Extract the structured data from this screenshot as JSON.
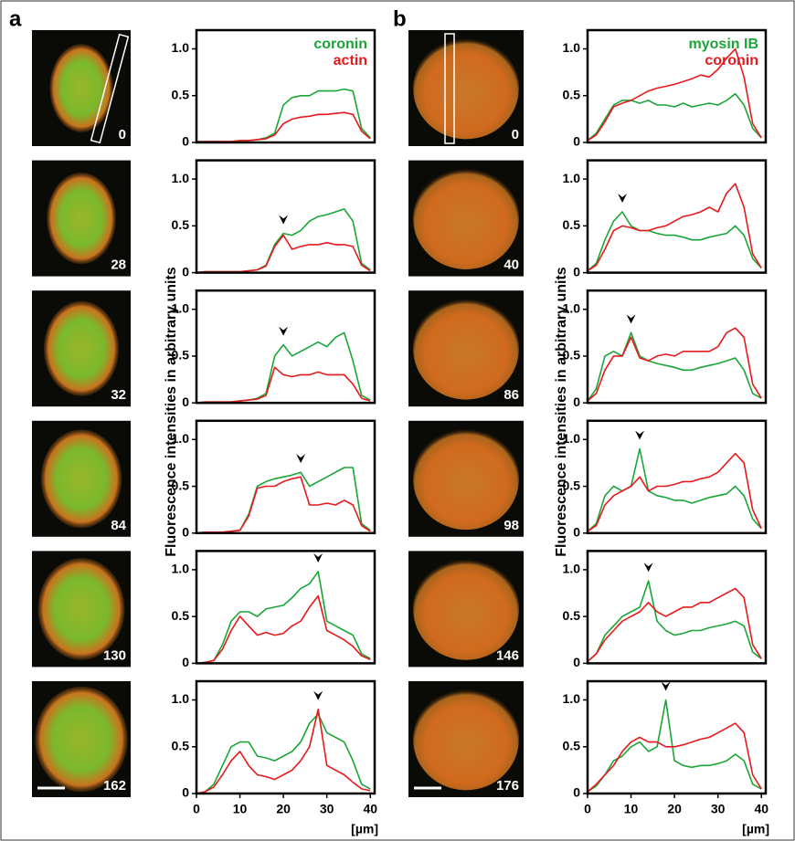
{
  "panel_labels": [
    "a",
    "b"
  ],
  "y_label": "Fluorescence intensities in arbitrary units",
  "chart_data": [
    {
      "type": "line",
      "image_label": "0",
      "legend": true,
      "xlim": [
        0,
        41
      ],
      "ylim": [
        0,
        1.2
      ],
      "yticks": [
        0,
        0.5,
        {
          "value": 1,
          "label": "1.0"
        }
      ],
      "x": [
        0,
        2,
        4,
        6,
        8,
        10,
        12,
        14,
        16,
        18,
        20,
        22,
        24,
        26,
        28,
        30,
        32,
        34,
        36,
        38,
        40
      ],
      "series": [
        {
          "name": "coronin",
          "color": "#1aa637",
          "values": [
            0.01,
            0.01,
            0.01,
            0.01,
            0.01,
            0.02,
            0.02,
            0.03,
            0.05,
            0.1,
            0.4,
            0.48,
            0.5,
            0.5,
            0.55,
            0.55,
            0.55,
            0.57,
            0.55,
            0.15,
            0.05
          ]
        },
        {
          "name": "actin",
          "color": "#e8191c",
          "values": [
            0.01,
            0.01,
            0.01,
            0.01,
            0.01,
            0.02,
            0.02,
            0.03,
            0.04,
            0.08,
            0.2,
            0.25,
            0.27,
            0.28,
            0.3,
            0.3,
            0.31,
            0.32,
            0.3,
            0.12,
            0.04
          ]
        }
      ]
    },
    {
      "type": "line",
      "image_label": "28",
      "marker_x": 20,
      "xlim": [
        0,
        41
      ],
      "ylim": [
        0,
        1.2
      ],
      "yticks": [
        0,
        0.5,
        {
          "value": 1,
          "label": "1.0"
        }
      ],
      "x": [
        0,
        2,
        4,
        6,
        8,
        10,
        12,
        14,
        16,
        18,
        20,
        22,
        24,
        26,
        28,
        30,
        32,
        34,
        36,
        38,
        40
      ],
      "series": [
        {
          "color": "#1aa637",
          "values": [
            0,
            0.01,
            0.01,
            0.01,
            0.01,
            0.01,
            0.02,
            0.03,
            0.08,
            0.3,
            0.42,
            0.4,
            0.45,
            0.55,
            0.6,
            0.62,
            0.65,
            0.68,
            0.55,
            0.1,
            0.03
          ]
        },
        {
          "color": "#e8191c",
          "values": [
            0,
            0.01,
            0.01,
            0.01,
            0.01,
            0.01,
            0.02,
            0.03,
            0.07,
            0.28,
            0.4,
            0.25,
            0.28,
            0.3,
            0.3,
            0.32,
            0.3,
            0.3,
            0.28,
            0.08,
            0.02
          ]
        }
      ]
    },
    {
      "type": "line",
      "image_label": "32",
      "marker_x": 20,
      "xlim": [
        0,
        41
      ],
      "ylim": [
        0,
        1.2
      ],
      "yticks": [
        0,
        0.5,
        {
          "value": 1,
          "label": "1.0"
        }
      ],
      "x": [
        0,
        2,
        4,
        6,
        8,
        10,
        12,
        14,
        16,
        18,
        20,
        22,
        24,
        26,
        28,
        30,
        32,
        34,
        36,
        38,
        40
      ],
      "series": [
        {
          "color": "#1aa637",
          "values": [
            0,
            0.01,
            0.01,
            0.01,
            0.01,
            0.02,
            0.03,
            0.05,
            0.1,
            0.5,
            0.62,
            0.5,
            0.55,
            0.6,
            0.65,
            0.6,
            0.7,
            0.75,
            0.45,
            0.08,
            0.03
          ]
        },
        {
          "color": "#e8191c",
          "values": [
            0,
            0.01,
            0.01,
            0.01,
            0.01,
            0.02,
            0.03,
            0.04,
            0.08,
            0.38,
            0.3,
            0.28,
            0.3,
            0.3,
            0.33,
            0.3,
            0.3,
            0.3,
            0.2,
            0.05,
            0.02
          ]
        }
      ]
    },
    {
      "type": "line",
      "image_label": "84",
      "marker_x": 24,
      "xlim": [
        0,
        41
      ],
      "ylim": [
        0,
        1.2
      ],
      "yticks": [
        0,
        0.5,
        {
          "value": 1,
          "label": "1.0"
        }
      ],
      "x": [
        0,
        2,
        4,
        6,
        8,
        10,
        12,
        14,
        16,
        18,
        20,
        22,
        24,
        26,
        28,
        30,
        32,
        34,
        36,
        38,
        40
      ],
      "series": [
        {
          "color": "#1aa637",
          "values": [
            0,
            0.01,
            0.01,
            0.01,
            0.02,
            0.03,
            0.2,
            0.5,
            0.55,
            0.58,
            0.6,
            0.62,
            0.65,
            0.5,
            0.55,
            0.6,
            0.65,
            0.7,
            0.7,
            0.1,
            0.03
          ]
        },
        {
          "color": "#e8191c",
          "values": [
            0,
            0.01,
            0.01,
            0.01,
            0.02,
            0.03,
            0.18,
            0.48,
            0.5,
            0.5,
            0.55,
            0.58,
            0.6,
            0.3,
            0.3,
            0.32,
            0.3,
            0.35,
            0.3,
            0.08,
            0.02
          ]
        }
      ]
    },
    {
      "type": "line",
      "image_label": "130",
      "marker_x": 28,
      "xlim": [
        0,
        41
      ],
      "ylim": [
        0,
        1.2
      ],
      "yticks": [
        0,
        0.5,
        {
          "value": 1,
          "label": "1.0"
        }
      ],
      "x": [
        0,
        2,
        4,
        6,
        8,
        10,
        12,
        14,
        16,
        18,
        20,
        22,
        24,
        26,
        28,
        30,
        32,
        34,
        36,
        38,
        40
      ],
      "series": [
        {
          "color": "#1aa637",
          "values": [
            0,
            0.01,
            0.03,
            0.2,
            0.45,
            0.55,
            0.55,
            0.5,
            0.58,
            0.6,
            0.62,
            0.7,
            0.8,
            0.85,
            0.98,
            0.45,
            0.4,
            0.35,
            0.3,
            0.1,
            0.05
          ]
        },
        {
          "color": "#e8191c",
          "values": [
            0,
            0.01,
            0.03,
            0.15,
            0.35,
            0.5,
            0.4,
            0.3,
            0.33,
            0.3,
            0.32,
            0.4,
            0.45,
            0.6,
            0.72,
            0.35,
            0.3,
            0.25,
            0.18,
            0.08,
            0.04
          ]
        }
      ]
    },
    {
      "type": "line",
      "image_label": "162",
      "marker_x": 28,
      "x_label": "[µm]",
      "xticks": [
        0,
        10,
        20,
        30,
        40
      ],
      "xlim": [
        0,
        41
      ],
      "ylim": [
        0,
        1.2
      ],
      "yticks": [
        0,
        0.5,
        {
          "value": 1,
          "label": "1.0"
        }
      ],
      "x": [
        0,
        2,
        4,
        6,
        8,
        10,
        12,
        14,
        16,
        18,
        20,
        22,
        24,
        26,
        28,
        30,
        32,
        34,
        36,
        38,
        40
      ],
      "series": [
        {
          "color": "#1aa637",
          "values": [
            0,
            0.02,
            0.1,
            0.3,
            0.5,
            0.55,
            0.55,
            0.4,
            0.38,
            0.35,
            0.4,
            0.45,
            0.55,
            0.75,
            0.85,
            0.65,
            0.6,
            0.55,
            0.35,
            0.1,
            0.05
          ]
        },
        {
          "color": "#e8191c",
          "values": [
            0,
            0.02,
            0.07,
            0.2,
            0.35,
            0.45,
            0.3,
            0.2,
            0.18,
            0.15,
            0.2,
            0.25,
            0.35,
            0.5,
            0.9,
            0.3,
            0.25,
            0.2,
            0.12,
            0.05,
            0.03
          ]
        }
      ]
    },
    {
      "type": "line",
      "image_label": "0",
      "legend": true,
      "xlim": [
        0,
        41
      ],
      "ylim": [
        0,
        1.2
      ],
      "yticks": [
        0,
        0.5,
        {
          "value": 1,
          "label": "1.0"
        }
      ],
      "x": [
        0,
        2,
        4,
        6,
        8,
        10,
        12,
        14,
        16,
        18,
        20,
        22,
        24,
        26,
        28,
        30,
        32,
        34,
        36,
        38,
        40
      ],
      "series": [
        {
          "name": "myosin IB",
          "color": "#1aa637",
          "values": [
            0.02,
            0.1,
            0.25,
            0.4,
            0.45,
            0.45,
            0.42,
            0.45,
            0.4,
            0.4,
            0.38,
            0.42,
            0.38,
            0.4,
            0.42,
            0.4,
            0.45,
            0.52,
            0.4,
            0.15,
            0.05
          ]
        },
        {
          "name": "coronin",
          "color": "#e8191c",
          "values": [
            0.02,
            0.08,
            0.22,
            0.38,
            0.42,
            0.45,
            0.5,
            0.55,
            0.58,
            0.6,
            0.62,
            0.65,
            0.68,
            0.72,
            0.7,
            0.78,
            0.9,
            1.0,
            0.7,
            0.2,
            0.05
          ]
        }
      ]
    },
    {
      "type": "line",
      "image_label": "40",
      "marker_x": 8,
      "xlim": [
        0,
        41
      ],
      "ylim": [
        0,
        1.2
      ],
      "yticks": [
        0,
        0.5,
        {
          "value": 1,
          "label": "1.0"
        }
      ],
      "x": [
        0,
        2,
        4,
        6,
        8,
        10,
        12,
        14,
        16,
        18,
        20,
        22,
        24,
        26,
        28,
        30,
        32,
        34,
        36,
        38,
        40
      ],
      "series": [
        {
          "color": "#1aa637",
          "values": [
            0.02,
            0.1,
            0.35,
            0.55,
            0.65,
            0.5,
            0.45,
            0.45,
            0.42,
            0.4,
            0.4,
            0.38,
            0.35,
            0.35,
            0.38,
            0.4,
            0.42,
            0.5,
            0.4,
            0.15,
            0.05
          ]
        },
        {
          "color": "#e8191c",
          "values": [
            0.02,
            0.08,
            0.25,
            0.45,
            0.5,
            0.48,
            0.45,
            0.45,
            0.48,
            0.5,
            0.55,
            0.6,
            0.62,
            0.65,
            0.7,
            0.65,
            0.85,
            0.95,
            0.7,
            0.2,
            0.05
          ]
        }
      ]
    },
    {
      "type": "line",
      "image_label": "86",
      "marker_x": 10,
      "xlim": [
        0,
        41
      ],
      "ylim": [
        0,
        1.2
      ],
      "yticks": [
        0,
        0.5,
        {
          "value": 1,
          "label": "1.0"
        }
      ],
      "x": [
        0,
        2,
        4,
        6,
        8,
        10,
        12,
        14,
        16,
        18,
        20,
        22,
        24,
        26,
        28,
        30,
        32,
        34,
        36,
        38,
        40
      ],
      "series": [
        {
          "color": "#1aa637",
          "values": [
            0.02,
            0.15,
            0.5,
            0.55,
            0.5,
            0.75,
            0.5,
            0.45,
            0.42,
            0.4,
            0.38,
            0.35,
            0.35,
            0.38,
            0.4,
            0.42,
            0.45,
            0.48,
            0.35,
            0.1,
            0.05
          ]
        },
        {
          "color": "#e8191c",
          "values": [
            0.02,
            0.1,
            0.35,
            0.5,
            0.5,
            0.7,
            0.48,
            0.45,
            0.5,
            0.52,
            0.5,
            0.55,
            0.55,
            0.55,
            0.55,
            0.6,
            0.75,
            0.8,
            0.7,
            0.2,
            0.05
          ]
        }
      ]
    },
    {
      "type": "line",
      "image_label": "98",
      "marker_x": 12,
      "xlim": [
        0,
        41
      ],
      "ylim": [
        0,
        1.2
      ],
      "yticks": [
        0,
        0.5,
        {
          "value": 1,
          "label": "1.0"
        }
      ],
      "x": [
        0,
        2,
        4,
        6,
        8,
        10,
        12,
        14,
        16,
        18,
        20,
        22,
        24,
        26,
        28,
        30,
        32,
        34,
        36,
        38,
        40
      ],
      "series": [
        {
          "color": "#1aa637",
          "values": [
            0.02,
            0.1,
            0.4,
            0.5,
            0.45,
            0.5,
            0.9,
            0.45,
            0.4,
            0.38,
            0.35,
            0.35,
            0.32,
            0.35,
            0.38,
            0.4,
            0.42,
            0.5,
            0.4,
            0.15,
            0.05
          ]
        },
        {
          "color": "#e8191c",
          "values": [
            0.02,
            0.08,
            0.3,
            0.4,
            0.45,
            0.5,
            0.6,
            0.45,
            0.5,
            0.5,
            0.52,
            0.55,
            0.55,
            0.58,
            0.6,
            0.65,
            0.75,
            0.85,
            0.75,
            0.25,
            0.05
          ]
        }
      ]
    },
    {
      "type": "line",
      "image_label": "146",
      "marker_x": 14,
      "xlim": [
        0,
        41
      ],
      "ylim": [
        0,
        1.2
      ],
      "yticks": [
        0,
        0.5,
        {
          "value": 1,
          "label": "1.0"
        }
      ],
      "x": [
        0,
        2,
        4,
        6,
        8,
        10,
        12,
        14,
        16,
        18,
        20,
        22,
        24,
        26,
        28,
        30,
        32,
        34,
        36,
        38,
        40
      ],
      "series": [
        {
          "color": "#1aa637",
          "values": [
            0.02,
            0.1,
            0.3,
            0.4,
            0.5,
            0.55,
            0.6,
            0.88,
            0.45,
            0.35,
            0.3,
            0.32,
            0.35,
            0.35,
            0.38,
            0.4,
            0.42,
            0.45,
            0.4,
            0.12,
            0.05
          ]
        },
        {
          "color": "#e8191c",
          "values": [
            0.02,
            0.1,
            0.25,
            0.35,
            0.45,
            0.5,
            0.55,
            0.65,
            0.55,
            0.5,
            0.55,
            0.6,
            0.6,
            0.65,
            0.65,
            0.7,
            0.75,
            0.8,
            0.7,
            0.2,
            0.05
          ]
        }
      ]
    },
    {
      "type": "line",
      "image_label": "176",
      "marker_x": 18,
      "x_label": "[µm]",
      "xticks": [
        0,
        10,
        20,
        30,
        40
      ],
      "xlim": [
        0,
        41
      ],
      "ylim": [
        0,
        1.2
      ],
      "yticks": [
        0,
        0.5,
        {
          "value": 1,
          "label": "1.0"
        }
      ],
      "x": [
        0,
        2,
        4,
        6,
        8,
        10,
        12,
        14,
        16,
        18,
        20,
        22,
        24,
        26,
        28,
        30,
        32,
        34,
        36,
        38,
        40
      ],
      "series": [
        {
          "color": "#1aa637",
          "values": [
            0.02,
            0.08,
            0.2,
            0.35,
            0.4,
            0.5,
            0.55,
            0.45,
            0.5,
            1.0,
            0.35,
            0.3,
            0.28,
            0.3,
            0.3,
            0.32,
            0.35,
            0.42,
            0.35,
            0.1,
            0.05
          ]
        },
        {
          "color": "#e8191c",
          "values": [
            0.02,
            0.1,
            0.2,
            0.3,
            0.45,
            0.55,
            0.6,
            0.55,
            0.55,
            0.5,
            0.5,
            0.52,
            0.55,
            0.58,
            0.6,
            0.65,
            0.7,
            0.75,
            0.65,
            0.2,
            0.05
          ]
        }
      ]
    }
  ]
}
